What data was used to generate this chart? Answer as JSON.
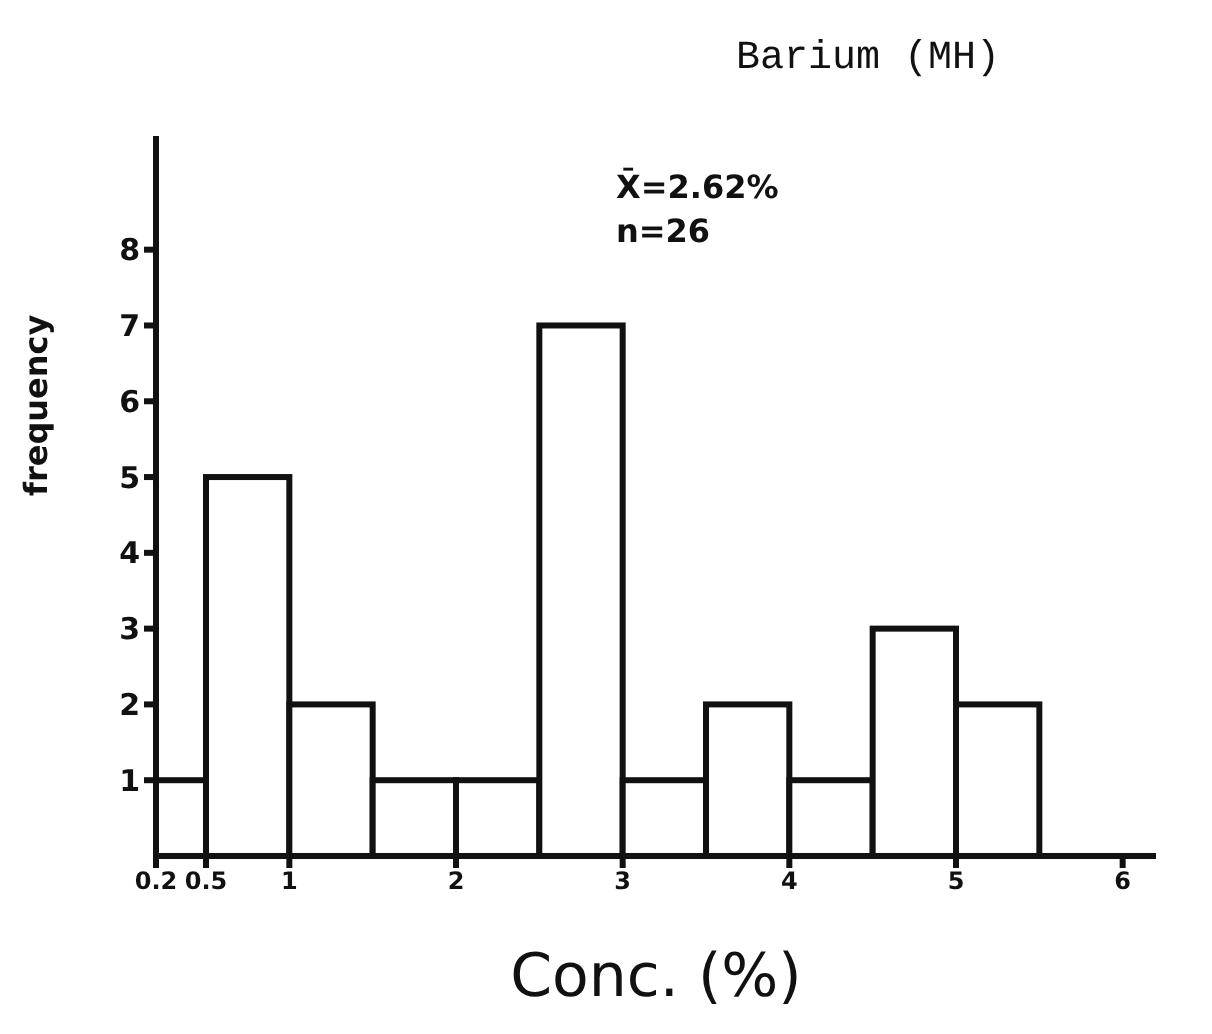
{
  "chart_data": {
    "type": "histogram",
    "title": "Barium (MH)",
    "xlabel": "Conc. (%)",
    "ylabel": "frequency",
    "annotations": [
      "X̄=2.62%",
      "n=26"
    ],
    "bins": [
      0.2,
      0.5,
      1,
      1.5,
      2,
      2.5,
      3,
      3.5,
      4,
      4.5,
      5,
      5.5
    ],
    "values": [
      1,
      5,
      2,
      1,
      1,
      7,
      1,
      2,
      1,
      3,
      2
    ],
    "color": "#ffffff",
    "xlim": [
      0.2,
      6.2
    ],
    "xticks": [
      0.2,
      0.5,
      1,
      2,
      3,
      4,
      5,
      6
    ],
    "ylim": [
      0,
      9.5
    ],
    "yticks": [
      1,
      2,
      3,
      4,
      5,
      6,
      7,
      8
    ],
    "grid": false
  }
}
